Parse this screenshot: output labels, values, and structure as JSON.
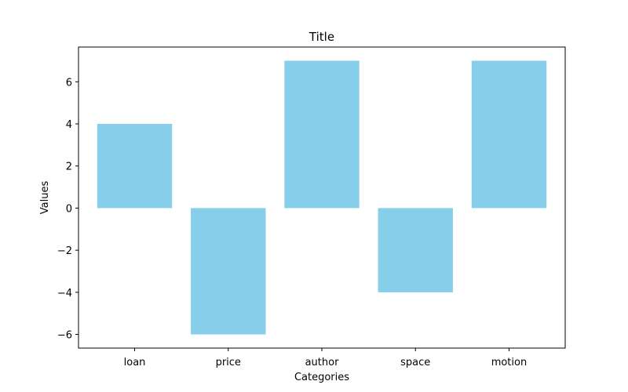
{
  "chart_data": {
    "type": "bar",
    "title": "Title",
    "xlabel": "Categories",
    "ylabel": "Values",
    "categories": [
      "loan",
      "price",
      "author",
      "space",
      "motion"
    ],
    "values": [
      4,
      -6,
      7,
      -4,
      7
    ],
    "ylim": [
      -6.65,
      7.65
    ],
    "yticks": [
      -6,
      -4,
      -2,
      0,
      2,
      4,
      6
    ],
    "bar_color": "#87ceeb",
    "grid": false,
    "legend": "none"
  }
}
